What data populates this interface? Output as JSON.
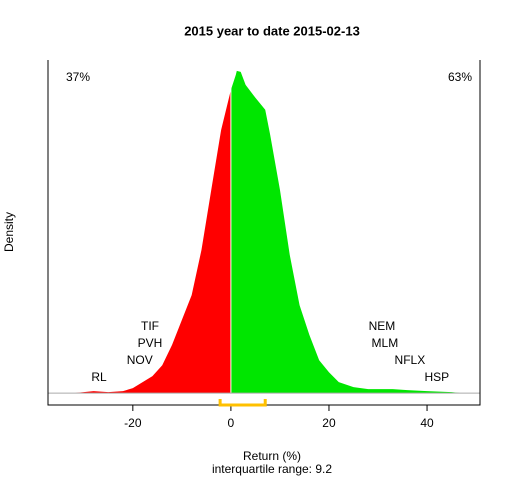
{
  "chart_data": {
    "type": "density",
    "title": "2015  year to date 2015-02-13",
    "xlabel": "Return (%)",
    "ylabel": "Density",
    "subtitle": "interquartile range: 9.2",
    "x": [
      -32,
      -30,
      -28,
      -25,
      -22,
      -20,
      -18,
      -16,
      -14,
      -12,
      -10,
      -8,
      -6,
      -4,
      -2,
      0,
      1,
      1.2,
      2,
      3,
      5,
      7,
      8,
      10,
      12,
      14,
      16,
      18,
      20,
      22,
      25,
      28,
      30,
      33,
      36,
      40,
      45,
      47
    ],
    "values": [
      0,
      0.0002,
      0.0004,
      0.0002,
      0.0004,
      0.001,
      0.0022,
      0.0034,
      0.0056,
      0.0097,
      0.0147,
      0.0197,
      0.0288,
      0.0409,
      0.0529,
      0.061,
      0.064,
      0.0648,
      0.0646,
      0.062,
      0.0594,
      0.057,
      0.052,
      0.0409,
      0.0278,
      0.0177,
      0.0117,
      0.0066,
      0.0042,
      0.0022,
      0.0012,
      0.0008,
      0.0008,
      0.0008,
      0.0006,
      0.0004,
      0.0002,
      0
    ],
    "colors": [
      "#ff0000",
      "#00e600"
    ],
    "xlim": [
      -37.3,
      50.8
    ],
    "ylim": [
      -0.0024,
      0.067
    ],
    "xticks": [
      -20,
      0,
      20,
      40
    ],
    "shares": {
      "values": [
        37,
        63
      ],
      "value_labels": [
        "37%",
        "63%"
      ],
      "colors": [
        "#e8231f",
        "#1a9a1a"
      ]
    },
    "labels_left": [
      {
        "text": "RL",
        "x": -26.9
      },
      {
        "text": "NOV",
        "x": -18.6
      },
      {
        "text": "PVH",
        "x": -16.5
      },
      {
        "text": "TIF",
        "x": -16.5
      }
    ],
    "labels_right": [
      {
        "text": "HSP",
        "x": 42
      },
      {
        "text": "NFLX",
        "x": 36.5
      },
      {
        "text": "MLM",
        "x": 31.4
      },
      {
        "text": "NEM",
        "x": 30.8
      }
    ],
    "iqr": [
      -2.2,
      7.0
    ],
    "iqr_color": "#ffc000"
  }
}
